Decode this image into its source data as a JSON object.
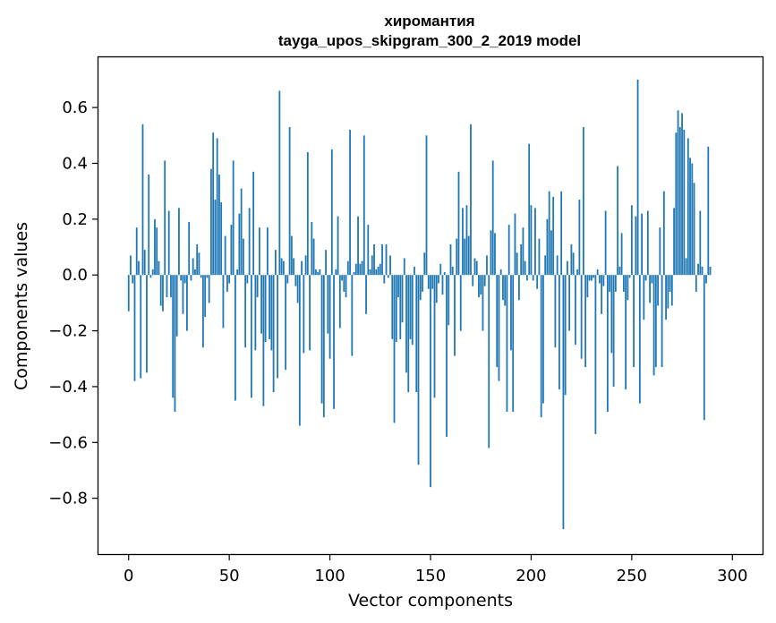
{
  "chart_data": {
    "type": "bar",
    "title": "хиромантия",
    "subtitle": "tayga_upos_skipgram_300_2_2019 model",
    "xlabel": "Vector components",
    "ylabel": "Components values",
    "xlim": [
      -15,
      315
    ],
    "ylim": [
      -1.0,
      0.78
    ],
    "xticks": [
      0,
      50,
      100,
      150,
      200,
      250,
      300
    ],
    "xtick_labels": [
      "0",
      "50",
      "100",
      "150",
      "200",
      "250",
      "300"
    ],
    "yticks": [
      -0.8,
      -0.6,
      -0.4,
      -0.2,
      0.0,
      0.2,
      0.4,
      0.6
    ],
    "ytick_labels": [
      "−0.8",
      "−0.6",
      "−0.4",
      "−0.2",
      "0.0",
      "0.2",
      "0.4",
      "0.6"
    ],
    "grid": false,
    "color": "#1f77b4",
    "series": [
      {
        "values": [
          -0.13,
          0.07,
          -0.03,
          -0.38,
          0.17,
          0.05,
          -0.37,
          0.54,
          0.09,
          -0.35,
          0.36,
          -0.01,
          0.02,
          0.2,
          0.17,
          0.05,
          -0.11,
          -0.13,
          0.41,
          -0.08,
          0.23,
          -0.08,
          -0.44,
          -0.49,
          -0.22,
          0.24,
          -0.02,
          -0.14,
          -0.03,
          -0.2,
          0.19,
          -0.02,
          0.06,
          0.02,
          0.11,
          0.08,
          -0.01,
          -0.26,
          -0.15,
          -0.01,
          -0.1,
          0.38,
          0.51,
          0.27,
          0.49,
          0.36,
          0.26,
          -0.19,
          0.14,
          -0.06,
          -0.03,
          0.18,
          0.41,
          -0.45,
          0.02,
          0.22,
          0.31,
          0.13,
          -0.26,
          -0.03,
          0.24,
          -0.44,
          0.37,
          -0.27,
          -0.08,
          0.17,
          -0.21,
          -0.47,
          -0.24,
          0.17,
          -0.23,
          -0.27,
          -0.42,
          0.09,
          -0.37,
          0.66,
          0.06,
          0.05,
          -0.34,
          -0.03,
          0.53,
          0.14,
          0.06,
          -0.04,
          -0.1,
          -0.54,
          0.05,
          -0.28,
          0.07,
          0.44,
          -0.27,
          0.19,
          0.13,
          0.02,
          0.01,
          0.02,
          -0.46,
          -0.51,
          0.09,
          -0.21,
          -0.3,
          0.45,
          -0.48,
          0.02,
          0.21,
          -0.19,
          -0.02,
          -0.06,
          -0.08,
          0.05,
          0.52,
          -0.29,
          0.01,
          0.04,
          0.21,
          0.04,
          0.05,
          0.5,
          -0.14,
          0.18,
          0.02,
          0.07,
          0.11,
          0.02,
          0.03,
          0.04,
          0.11,
          -0.03,
          0.11,
          -0.01,
          0.07,
          -0.23,
          -0.53,
          -0.24,
          -0.08,
          -0.23,
          -0.17,
          0.06,
          -0.35,
          -0.42,
          -0.23,
          -0.25,
          0.03,
          -0.42,
          -0.68,
          -0.09,
          -0.06,
          0.08,
          0.5,
          -0.05,
          -0.76,
          -0.05,
          -0.44,
          -0.1,
          -0.03,
          0.04,
          -0.07,
          0.01,
          -0.58,
          -0.18,
          0.11,
          0.03,
          -0.29,
          0.13,
          0.37,
          -0.2,
          0.24,
          0.13,
          0.25,
          0.14,
          0.54,
          -0.04,
          0.06,
          0.05,
          -0.08,
          -0.07,
          -0.2,
          -0.04,
          0.07,
          -0.62,
          0.16,
          0.41,
          0.15,
          -0.33,
          -0.38,
          0.02,
          -0.09,
          -0.11,
          -0.49,
          0.18,
          -0.27,
          -0.49,
          0.22,
          0.08,
          -0.09,
          0.11,
          0.17,
          0.05,
          -0.02,
          0.47,
          0.25,
          -0.02,
          0.24,
          -0.05,
          0.13,
          -0.51,
          -0.46,
          0.07,
          0.2,
          0.3,
          0.16,
          0.28,
          -0.26,
          0.07,
          -0.41,
          0.3,
          -0.91,
          -0.43,
          0.05,
          -0.2,
          0.11,
          0.08,
          -0.25,
          0.02,
          0.27,
          -0.3,
          0.53,
          -0.33,
          -0.08,
          -0.02,
          -0.02,
          -0.01,
          -0.57,
          0.02,
          -0.03,
          -0.14,
          -0.04,
          0.23,
          -0.49,
          -0.06,
          -0.28,
          -0.4,
          -0.06,
          0.39,
          0.03,
          0.15,
          -0.06,
          -0.41,
          -0.09,
          -0.01,
          0.25,
          -0.33,
          0.21,
          0.7,
          -0.46,
          0.22,
          -0.16,
          -0.02,
          0.23,
          -0.1,
          -0.03,
          -0.36,
          -0.33,
          -0.11,
          0.17,
          -0.33,
          0.3,
          -0.16,
          -0.12,
          -0.06,
          -0.11,
          0.24,
          0.51,
          0.59,
          0.53,
          0.58,
          0.52,
          0.06,
          0.49,
          0.42,
          0.4,
          0.33,
          -0.06,
          0.04,
          0.23,
          0.03,
          -0.52,
          -0.03,
          0.46,
          0.03
        ]
      }
    ]
  }
}
